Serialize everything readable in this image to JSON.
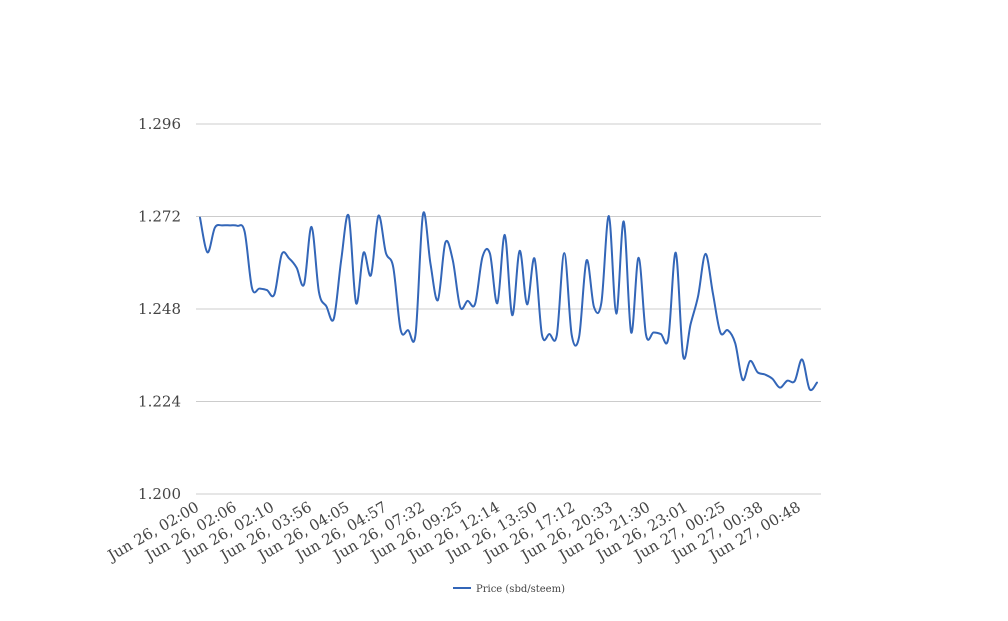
{
  "chart_data": {
    "type": "line",
    "title": "",
    "xlabel": "",
    "ylabel": "",
    "ylim": [
      1.2,
      1.296
    ],
    "yticks": [
      "1.200",
      "1.224",
      "1.248",
      "1.272",
      "1.296"
    ],
    "xticks": [
      "Jun 26, 02:00",
      "Jun 26, 02:06",
      "Jun 26, 02:10",
      "Jun 26, 03:56",
      "Jun 26, 04:05",
      "Jun 26, 04:57",
      "Jun 26, 07:32",
      "Jun 26, 09:25",
      "Jun 26, 12:14",
      "Jun 26, 13:50",
      "Jun 26, 17:12",
      "Jun 26, 20:33",
      "Jun 26, 21:30",
      "Jun 26, 23:01",
      "Jun 27, 00:25",
      "Jun 27, 00:38",
      "Jun 27, 00:48"
    ],
    "grid": true,
    "legend_position": "bottom",
    "series": [
      {
        "name": "Price (sbd/steem)",
        "color": "#3366b8",
        "values": [
          1.2717,
          1.2627,
          1.2691,
          1.2697,
          1.2697,
          1.2696,
          1.2681,
          1.2534,
          1.2533,
          1.2529,
          1.2518,
          1.2622,
          1.2611,
          1.2587,
          1.2544,
          1.2693,
          1.2524,
          1.2487,
          1.2455,
          1.2608,
          1.2722,
          1.2495,
          1.2626,
          1.2568,
          1.2722,
          1.2626,
          1.2588,
          1.2425,
          1.2425,
          1.2415,
          1.2726,
          1.2598,
          1.2503,
          1.2652,
          1.2607,
          1.2485,
          1.2501,
          1.2493,
          1.2615,
          1.2624,
          1.2495,
          1.2672,
          1.2464,
          1.2631,
          1.2492,
          1.2611,
          1.2413,
          1.2415,
          1.2412,
          1.2625,
          1.2413,
          1.2408,
          1.2606,
          1.2485,
          1.2497,
          1.2721,
          1.2468,
          1.2707,
          1.2419,
          1.2613,
          1.2413,
          1.2419,
          1.2415,
          1.2404,
          1.2626,
          1.2357,
          1.2441,
          1.2513,
          1.2623,
          1.252,
          1.2419,
          1.2425,
          1.2391,
          1.2296,
          1.2345,
          1.2316,
          1.231,
          1.2299,
          1.2276,
          1.2294,
          1.2293,
          1.2349,
          1.2272,
          1.2289
        ]
      }
    ]
  }
}
